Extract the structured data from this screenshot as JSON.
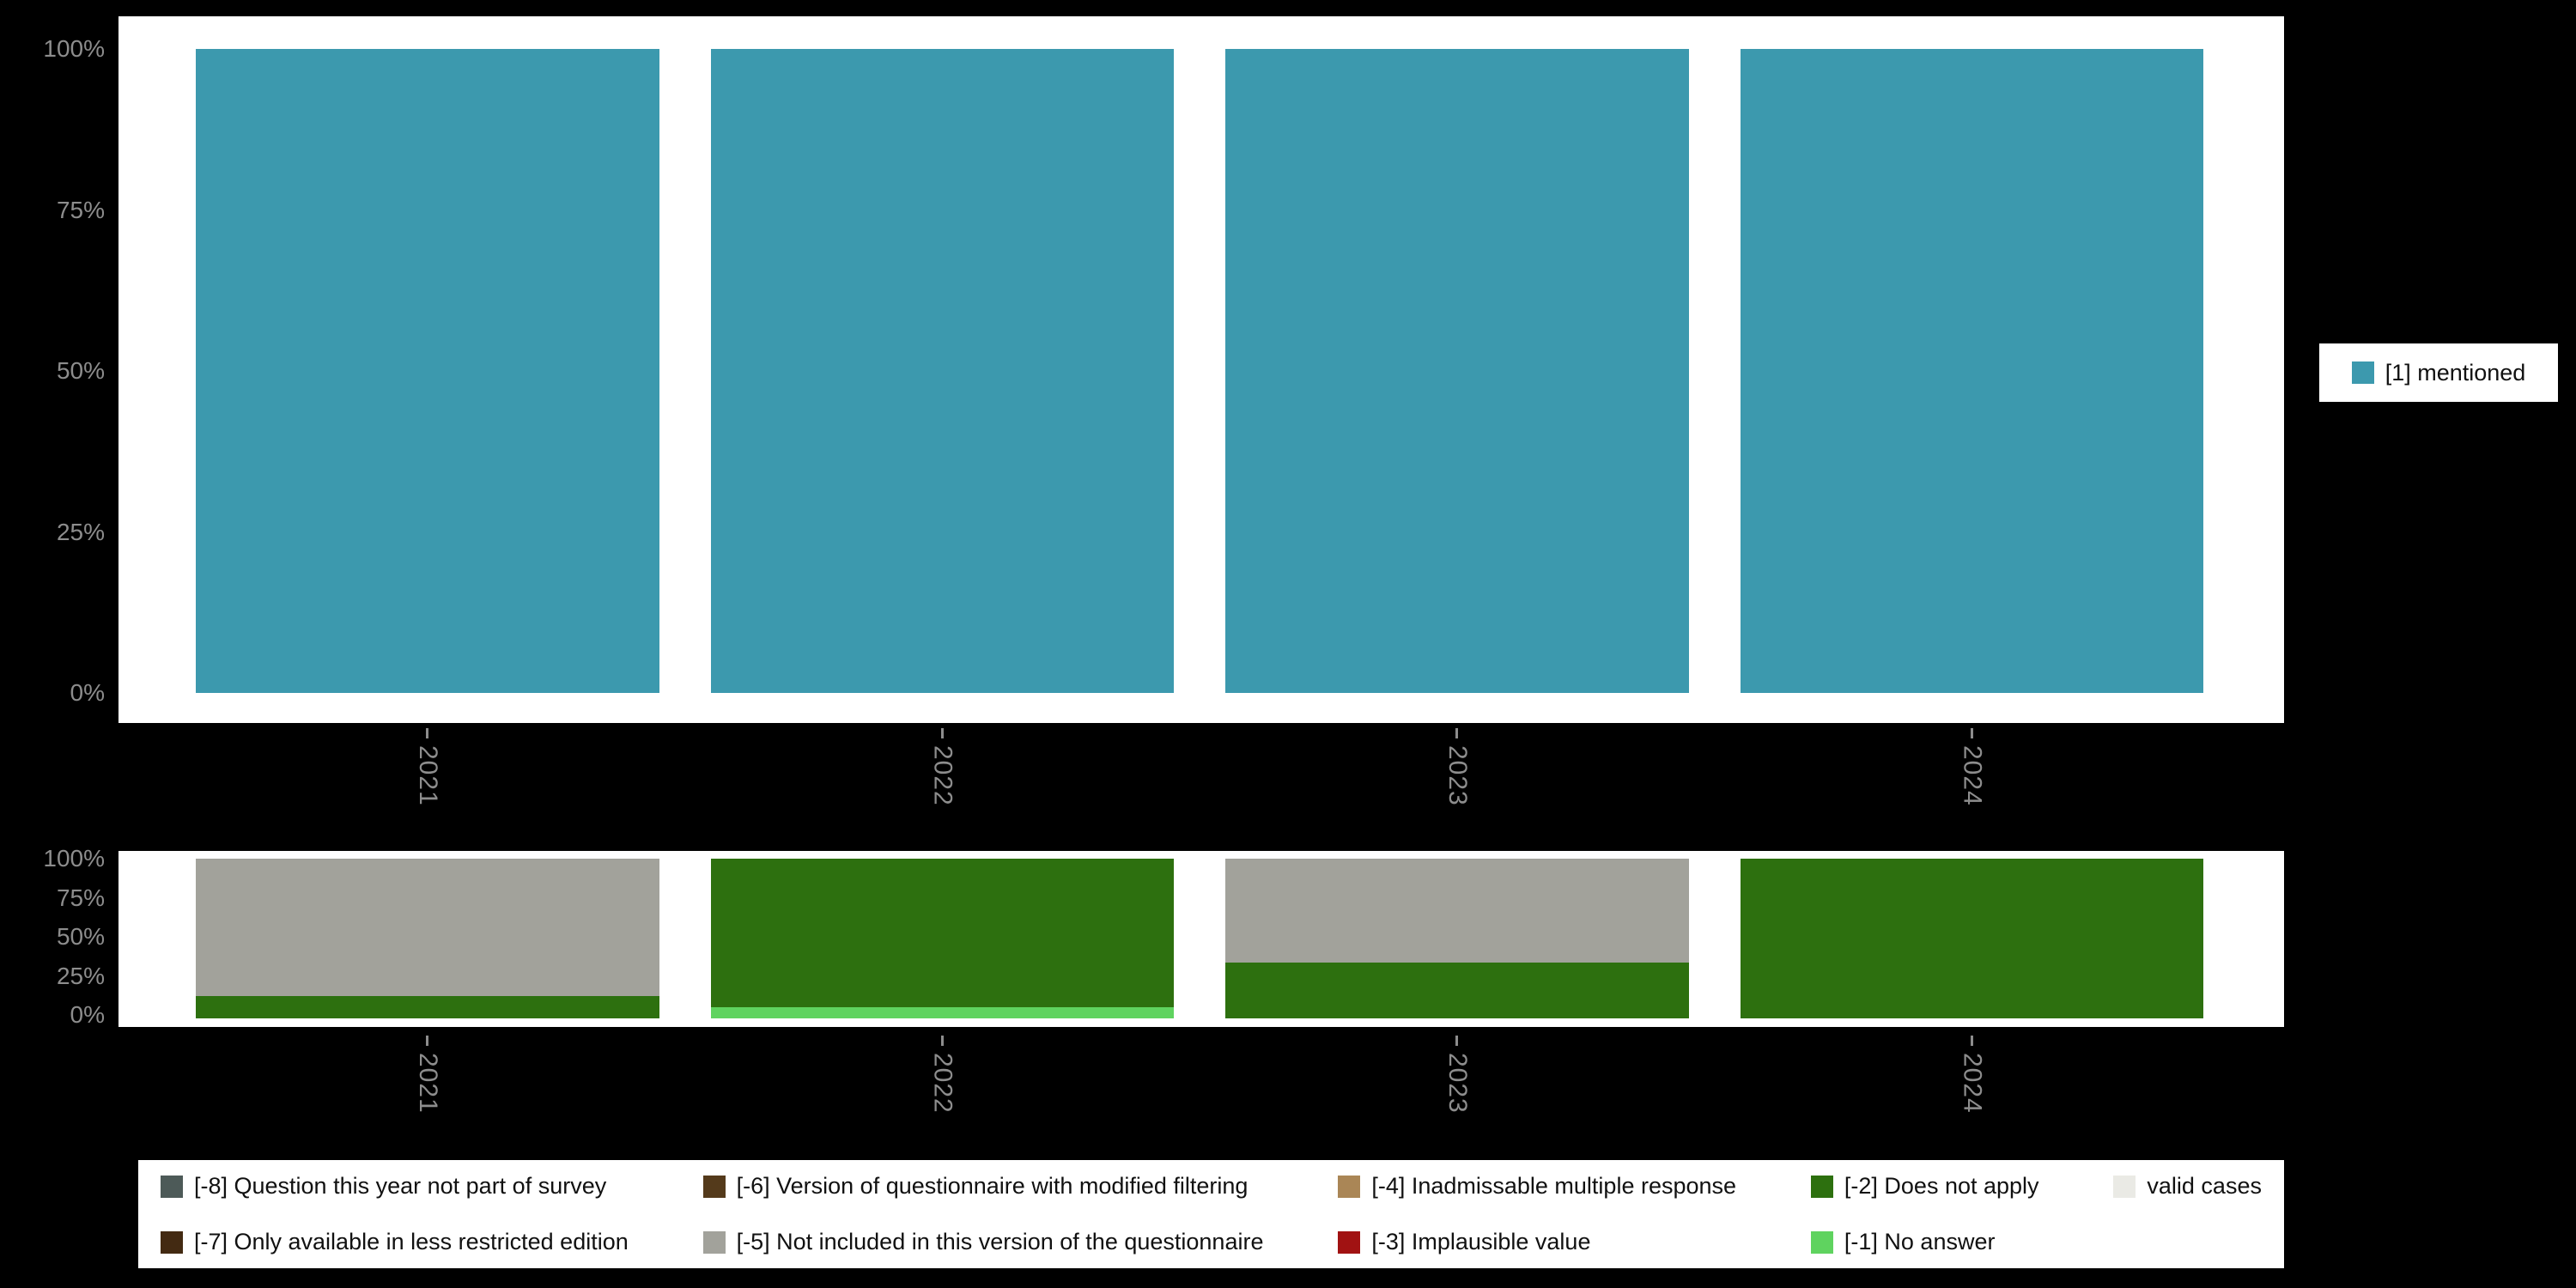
{
  "page": {
    "background_color": "#000000",
    "panel_color": "#ffffff",
    "axis_text_color": "#8d8d8d"
  },
  "legend_right": {
    "items": [
      {
        "label": "[1] mentioned",
        "color": "#3c99ae"
      }
    ]
  },
  "legend_bottom": {
    "items": [
      {
        "label": "[-8] Question this year not part of survey",
        "color": "#4d5a58",
        "row": 1,
        "col": 1
      },
      {
        "label": "[-7] Only available in less restricted edition",
        "color": "#432a12",
        "row": 2,
        "col": 1
      },
      {
        "label": "[-6] Version of questionnaire with modified filtering",
        "color": "#543a1b",
        "row": 1,
        "col": 2
      },
      {
        "label": "[-5] Not included in this version of the questionnaire",
        "color": "#a2a29b",
        "row": 2,
        "col": 2
      },
      {
        "label": "[-4] Inadmissable multiple response",
        "color": "#aa8656",
        "row": 1,
        "col": 3
      },
      {
        "label": "[-3] Implausible value",
        "color": "#a11212",
        "row": 2,
        "col": 3
      },
      {
        "label": "[-2] Does not apply",
        "color": "#2d700f",
        "row": 1,
        "col": 4
      },
      {
        "label": "[-1] No answer",
        "color": "#5fd35f",
        "row": 2,
        "col": 4
      },
      {
        "label": "valid cases",
        "color": "#eaeae5",
        "row": 1,
        "col": 5
      }
    ]
  },
  "chart_data": [
    {
      "type": "bar",
      "stacked": true,
      "title": "",
      "categories": [
        "2021",
        "2022",
        "2023",
        "2024"
      ],
      "series": [
        {
          "name": "[1] mentioned",
          "color": "#3c99ae",
          "values": [
            100,
            100,
            100,
            100
          ]
        }
      ],
      "ylim": [
        0,
        100
      ],
      "yticks": [
        "0%",
        "25%",
        "50%",
        "75%",
        "100%"
      ],
      "grid": false,
      "legend_position": "right"
    },
    {
      "type": "bar",
      "stacked": true,
      "title": "",
      "categories": [
        "2021",
        "2022",
        "2023",
        "2024"
      ],
      "series": [
        {
          "name": "[-5] Not included in this version of the questionnaire",
          "color": "#a2a29b",
          "values": [
            86,
            0,
            65,
            0
          ]
        },
        {
          "name": "[-2] Does not apply",
          "color": "#2d700f",
          "values": [
            14,
            93,
            35,
            100
          ]
        },
        {
          "name": "[-1] No answer",
          "color": "#5fd35f",
          "values": [
            0,
            7,
            0,
            0
          ]
        }
      ],
      "ylim": [
        0,
        100
      ],
      "yticks": [
        "0%",
        "25%",
        "50%",
        "75%",
        "100%"
      ],
      "grid": false,
      "legend_position": "bottom"
    }
  ]
}
